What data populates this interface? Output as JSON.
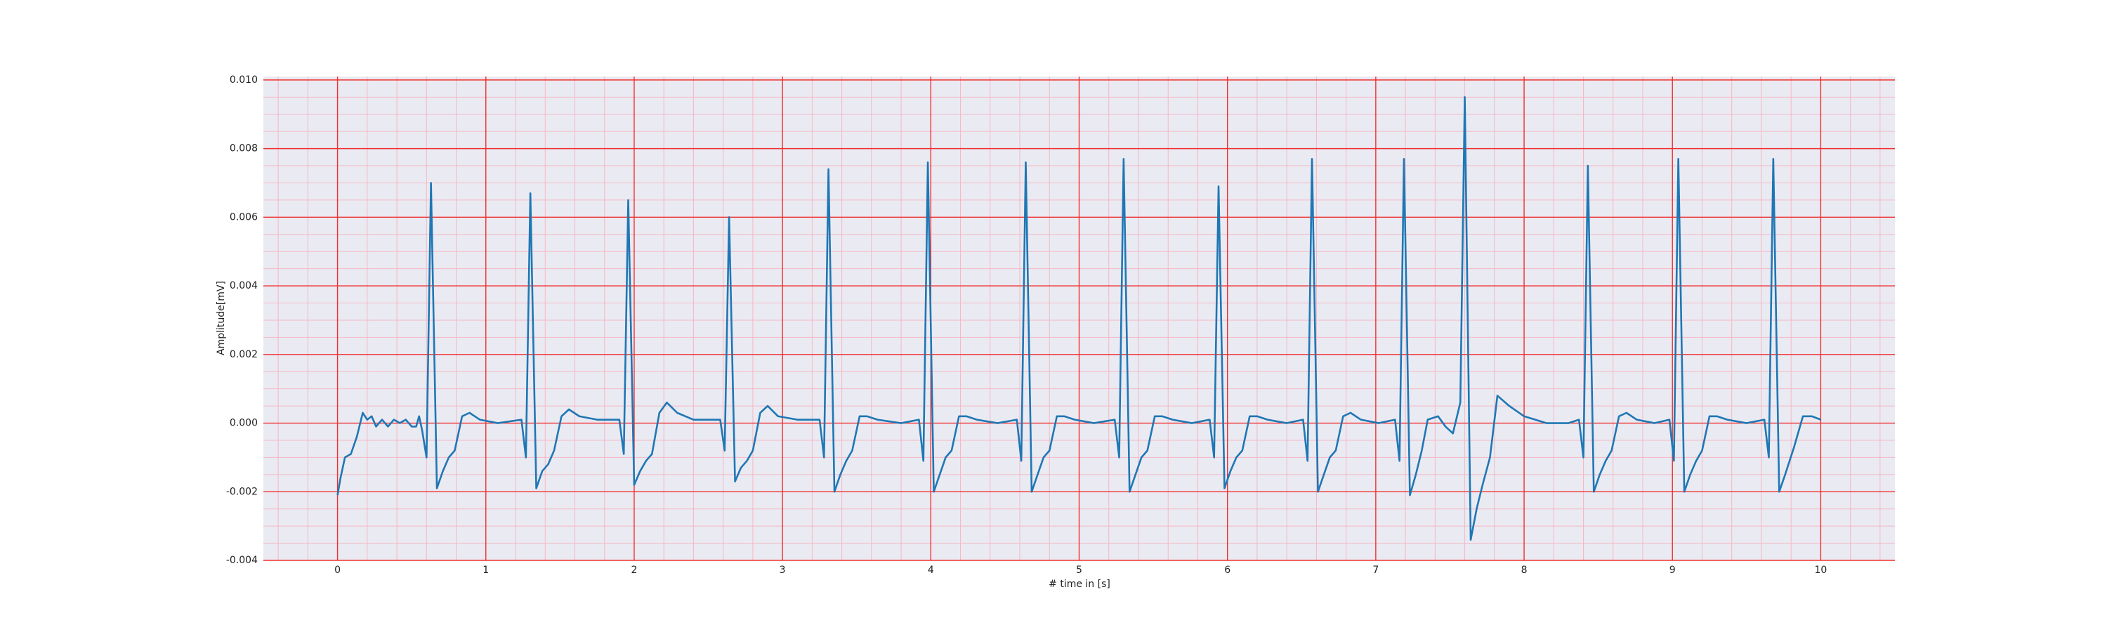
{
  "chart_data": {
    "type": "line",
    "xlabel": "# time in [s]",
    "ylabel": "Amplitude[mV]",
    "x": [
      0.0,
      0.02,
      0.05,
      0.09,
      0.13,
      0.17,
      0.2,
      0.23,
      0.26,
      0.3,
      0.34,
      0.38,
      0.42,
      0.46,
      0.5,
      0.53,
      0.55,
      0.57,
      0.6,
      0.63,
      0.67,
      0.71,
      0.75,
      0.79,
      0.84,
      0.89,
      0.96,
      1.08,
      1.24,
      1.27,
      1.3,
      1.34,
      1.38,
      1.42,
      1.46,
      1.51,
      1.56,
      1.63,
      1.75,
      1.9,
      1.93,
      1.96,
      2.0,
      2.04,
      2.08,
      2.12,
      2.17,
      2.22,
      2.29,
      2.4,
      2.58,
      2.61,
      2.64,
      2.68,
      2.72,
      2.76,
      2.8,
      2.85,
      2.9,
      2.97,
      3.1,
      3.25,
      3.28,
      3.31,
      3.35,
      3.39,
      3.43,
      3.47,
      3.52,
      3.57,
      3.64,
      3.8,
      3.92,
      3.95,
      3.98,
      4.02,
      4.06,
      4.1,
      4.14,
      4.19,
      4.24,
      4.31,
      4.45,
      4.58,
      4.61,
      4.64,
      4.68,
      4.72,
      4.76,
      4.8,
      4.85,
      4.9,
      4.97,
      5.1,
      5.24,
      5.27,
      5.3,
      5.34,
      5.38,
      5.42,
      5.46,
      5.51,
      5.56,
      5.63,
      5.76,
      5.88,
      5.91,
      5.94,
      5.98,
      6.02,
      6.06,
      6.1,
      6.15,
      6.2,
      6.27,
      6.4,
      6.51,
      6.54,
      6.57,
      6.61,
      6.65,
      6.69,
      6.73,
      6.78,
      6.83,
      6.9,
      7.02,
      7.13,
      7.16,
      7.19,
      7.23,
      7.27,
      7.31,
      7.35,
      7.42,
      7.47,
      7.52,
      7.57,
      7.6,
      7.64,
      7.68,
      7.72,
      7.77,
      7.82,
      7.9,
      8.0,
      8.15,
      8.3,
      8.37,
      8.4,
      8.43,
      8.47,
      8.51,
      8.55,
      8.59,
      8.64,
      8.69,
      8.76,
      8.88,
      8.98,
      9.01,
      9.04,
      9.08,
      9.12,
      9.16,
      9.2,
      9.25,
      9.3,
      9.37,
      9.5,
      9.62,
      9.65,
      9.68,
      9.72,
      9.76,
      9.82,
      9.88,
      9.94,
      10.0
    ],
    "series": [
      {
        "color": "#1f77b4",
        "values": [
          -0.0021,
          -0.0016,
          -0.001,
          -0.0009,
          -0.0004,
          0.0003,
          0.0001,
          0.0002,
          -0.0001,
          0.0001,
          -0.0001,
          0.0001,
          0.0,
          0.0001,
          -0.0001,
          -0.0001,
          0.0002,
          -0.0002,
          -0.001,
          0.007,
          -0.0019,
          -0.0014,
          -0.001,
          -0.0008,
          0.0002,
          0.0003,
          0.0001,
          0.0,
          0.0001,
          -0.001,
          0.0067,
          -0.0019,
          -0.0014,
          -0.0012,
          -0.0008,
          0.0002,
          0.0004,
          0.0002,
          0.0001,
          0.0001,
          -0.0009,
          0.0065,
          -0.0018,
          -0.0014,
          -0.0011,
          -0.0009,
          0.0003,
          0.0006,
          0.0003,
          0.0001,
          0.0001,
          -0.0008,
          0.006,
          -0.0017,
          -0.0013,
          -0.0011,
          -0.0008,
          0.0003,
          0.0005,
          0.0002,
          0.0001,
          0.0001,
          -0.001,
          0.0074,
          -0.002,
          -0.0015,
          -0.0011,
          -0.0008,
          0.0002,
          0.0002,
          0.0001,
          0.0,
          0.0001,
          -0.0011,
          0.0076,
          -0.002,
          -0.0015,
          -0.001,
          -0.0008,
          0.0002,
          0.0002,
          0.0001,
          0.0,
          0.0001,
          -0.0011,
          0.0076,
          -0.002,
          -0.0015,
          -0.001,
          -0.0008,
          0.0002,
          0.0002,
          0.0001,
          0.0,
          0.0001,
          -0.001,
          0.0077,
          -0.002,
          -0.0015,
          -0.001,
          -0.0008,
          0.0002,
          0.0002,
          0.0001,
          0.0,
          0.0001,
          -0.001,
          0.0069,
          -0.0019,
          -0.0014,
          -0.001,
          -0.0008,
          0.0002,
          0.0002,
          0.0001,
          0.0,
          0.0001,
          -0.0011,
          0.0077,
          -0.002,
          -0.0015,
          -0.001,
          -0.0008,
          0.0002,
          0.0003,
          0.0001,
          0.0,
          0.0001,
          -0.0011,
          0.0077,
          -0.0021,
          -0.0015,
          -0.0008,
          0.0001,
          0.0002,
          -0.0001,
          -0.0003,
          0.0006,
          0.0095,
          -0.0034,
          -0.0025,
          -0.0018,
          -0.001,
          0.0008,
          0.0005,
          0.0002,
          0.0,
          0.0,
          0.0001,
          -0.001,
          0.0075,
          -0.002,
          -0.0015,
          -0.0011,
          -0.0008,
          0.0002,
          0.0003,
          0.0001,
          0.0,
          0.0001,
          -0.0011,
          0.0077,
          -0.002,
          -0.0015,
          -0.0011,
          -0.0008,
          0.0002,
          0.0002,
          0.0001,
          0.0,
          0.0001,
          -0.001,
          0.0077,
          -0.002,
          -0.0015,
          -0.0007,
          0.0002,
          0.0002,
          0.0001
        ]
      }
    ],
    "xlim": [
      -0.5,
      10.5
    ],
    "ylim": [
      -0.004,
      0.0101
    ],
    "xticks": [
      0,
      1,
      2,
      3,
      4,
      5,
      6,
      7,
      8,
      9,
      10
    ],
    "yticks": [
      {
        "value": -0.004,
        "label": "-0.004"
      },
      {
        "value": -0.002,
        "label": "-0.002"
      },
      {
        "value": 0,
        "label": "0.000"
      },
      {
        "value": 0.002,
        "label": "0.002"
      },
      {
        "value": 0.004,
        "label": "0.004"
      },
      {
        "value": 0.006,
        "label": "0.006"
      },
      {
        "value": 0.008,
        "label": "0.008"
      },
      {
        "value": 0.01,
        "label": "0.010"
      }
    ],
    "grid": true,
    "minor_grid": true,
    "background": "#eaeaf2",
    "grid_color": "#f03030",
    "minor_grid_color": "#f4b8c4"
  }
}
